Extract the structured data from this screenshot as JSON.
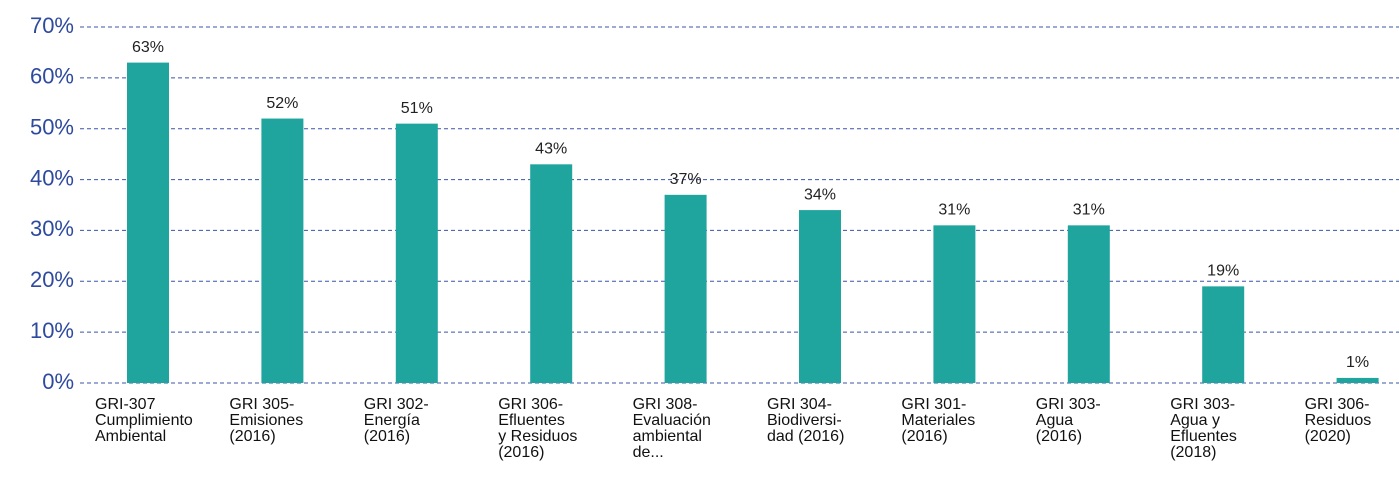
{
  "chart_data": {
    "type": "bar",
    "categories": [
      "GRI-307\nCumplimiento\nAmbiental",
      "GRI 305-\nEmisiones\n(2016)",
      "GRI 302-\nEnergía\n(2016)",
      "GRI 306-\nEfluentes\ny Residuos\n(2016)",
      "GRI 308-\nEvaluación\nambiental\nde...",
      "GRI 304-\nBiodiversi-\ndad (2016)",
      "GRI 301-\nMateriales\n(2016)",
      "GRI 303-\nAgua\n(2016)",
      "GRI 303-\nAgua y\nEfluentes\n(2018)",
      "GRI 306-\nResiduos\n(2020)"
    ],
    "values": [
      63,
      52,
      51,
      43,
      37,
      34,
      31,
      31,
      19,
      1
    ],
    "value_labels": [
      "63%",
      "52%",
      "51%",
      "43%",
      "37%",
      "34%",
      "31%",
      "31%",
      "19%",
      "1%"
    ],
    "color": "#20a59e",
    "ylim": [
      0,
      70
    ],
    "yticks": [
      {
        "value": 0,
        "label": "0%"
      },
      {
        "value": 10,
        "label": "10%"
      },
      {
        "value": 20,
        "label": "20%"
      },
      {
        "value": 30,
        "label": "30%"
      },
      {
        "value": 40,
        "label": "40%"
      },
      {
        "value": 50,
        "label": "50%"
      },
      {
        "value": 60,
        "label": "60%"
      },
      {
        "value": 70,
        "label": "70%"
      }
    ],
    "grid": true
  }
}
